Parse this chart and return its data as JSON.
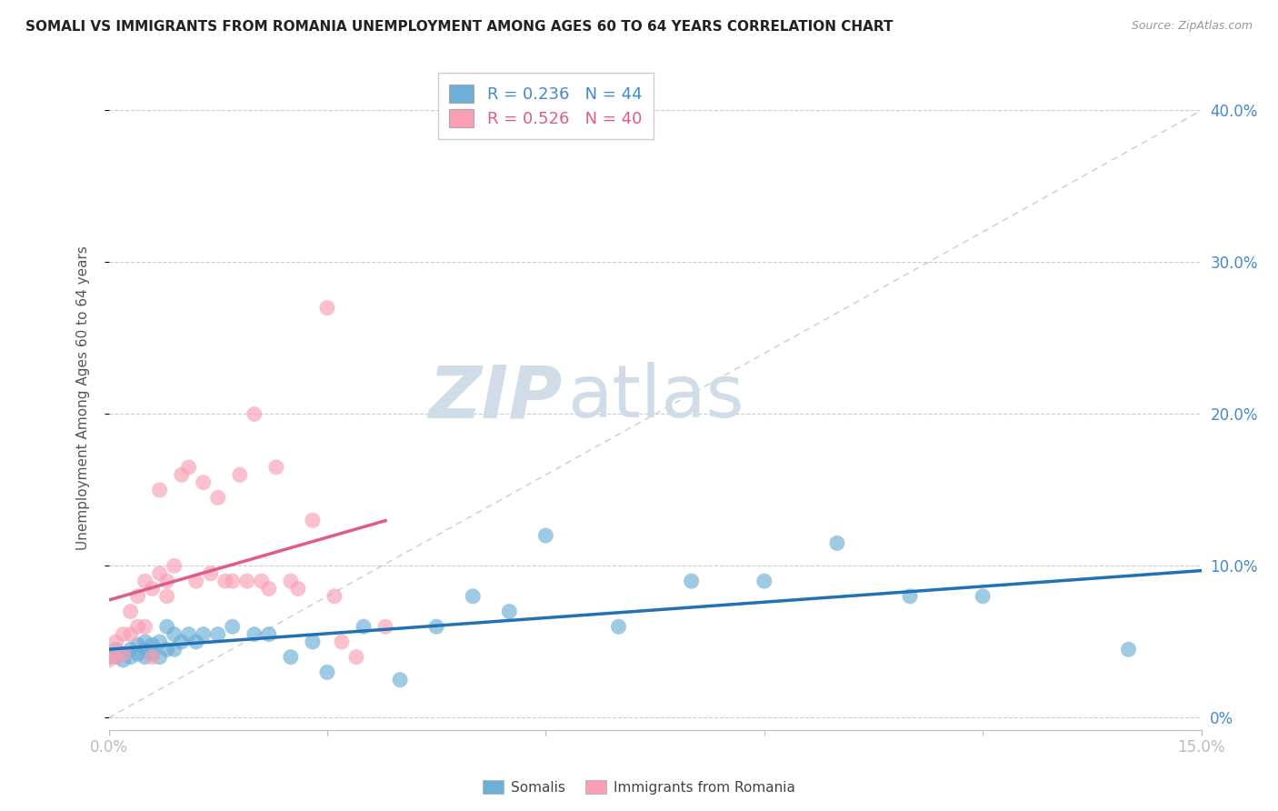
{
  "title": "SOMALI VS IMMIGRANTS FROM ROMANIA UNEMPLOYMENT AMONG AGES 60 TO 64 YEARS CORRELATION CHART",
  "source": "Source: ZipAtlas.com",
  "ylabel": "Unemployment Among Ages 60 to 64 years",
  "xlim": [
    0.0,
    0.15
  ],
  "ylim": [
    0.0,
    0.42
  ],
  "xticks": [
    0.0,
    0.03,
    0.06,
    0.09,
    0.12,
    0.15
  ],
  "yticks": [
    0.0,
    0.1,
    0.2,
    0.3,
    0.4
  ],
  "somali_R": 0.236,
  "somali_N": 44,
  "romania_R": 0.526,
  "romania_N": 40,
  "somali_color": "#6baed6",
  "romania_color": "#fa9fb5",
  "somali_line_color": "#2171b5",
  "romania_line_color": "#e05a8a",
  "diagonal_color": "#cccccc",
  "background_color": "#ffffff",
  "watermark_zip": "ZIP",
  "watermark_atlas": "atlas",
  "watermark_color": "#d0dde8",
  "legend_label_somali": "Somalis",
  "legend_label_romania": "Immigrants from Romania",
  "somali_x": [
    0.0,
    0.001,
    0.001,
    0.002,
    0.002,
    0.003,
    0.003,
    0.004,
    0.004,
    0.005,
    0.005,
    0.005,
    0.006,
    0.006,
    0.007,
    0.007,
    0.008,
    0.008,
    0.009,
    0.009,
    0.01,
    0.011,
    0.012,
    0.013,
    0.015,
    0.017,
    0.02,
    0.022,
    0.025,
    0.028,
    0.03,
    0.035,
    0.04,
    0.045,
    0.05,
    0.055,
    0.06,
    0.07,
    0.08,
    0.09,
    0.1,
    0.11,
    0.12,
    0.14
  ],
  "somali_y": [
    0.04,
    0.04,
    0.045,
    0.038,
    0.042,
    0.04,
    0.045,
    0.042,
    0.048,
    0.04,
    0.045,
    0.05,
    0.042,
    0.048,
    0.04,
    0.05,
    0.045,
    0.06,
    0.045,
    0.055,
    0.05,
    0.055,
    0.05,
    0.055,
    0.055,
    0.06,
    0.055,
    0.055,
    0.04,
    0.05,
    0.03,
    0.06,
    0.025,
    0.06,
    0.08,
    0.07,
    0.12,
    0.06,
    0.09,
    0.09,
    0.115,
    0.08,
    0.08,
    0.045
  ],
  "romania_x": [
    0.0,
    0.001,
    0.001,
    0.002,
    0.002,
    0.003,
    0.003,
    0.004,
    0.004,
    0.005,
    0.005,
    0.006,
    0.006,
    0.007,
    0.007,
    0.008,
    0.008,
    0.009,
    0.01,
    0.011,
    0.012,
    0.013,
    0.014,
    0.015,
    0.016,
    0.017,
    0.018,
    0.019,
    0.02,
    0.021,
    0.022,
    0.023,
    0.025,
    0.026,
    0.028,
    0.03,
    0.031,
    0.032,
    0.034,
    0.038
  ],
  "romania_y": [
    0.038,
    0.04,
    0.05,
    0.042,
    0.055,
    0.055,
    0.07,
    0.06,
    0.08,
    0.06,
    0.09,
    0.04,
    0.085,
    0.095,
    0.15,
    0.08,
    0.09,
    0.1,
    0.16,
    0.165,
    0.09,
    0.155,
    0.095,
    0.145,
    0.09,
    0.09,
    0.16,
    0.09,
    0.2,
    0.09,
    0.085,
    0.165,
    0.09,
    0.085,
    0.13,
    0.27,
    0.08,
    0.05,
    0.04,
    0.06
  ]
}
